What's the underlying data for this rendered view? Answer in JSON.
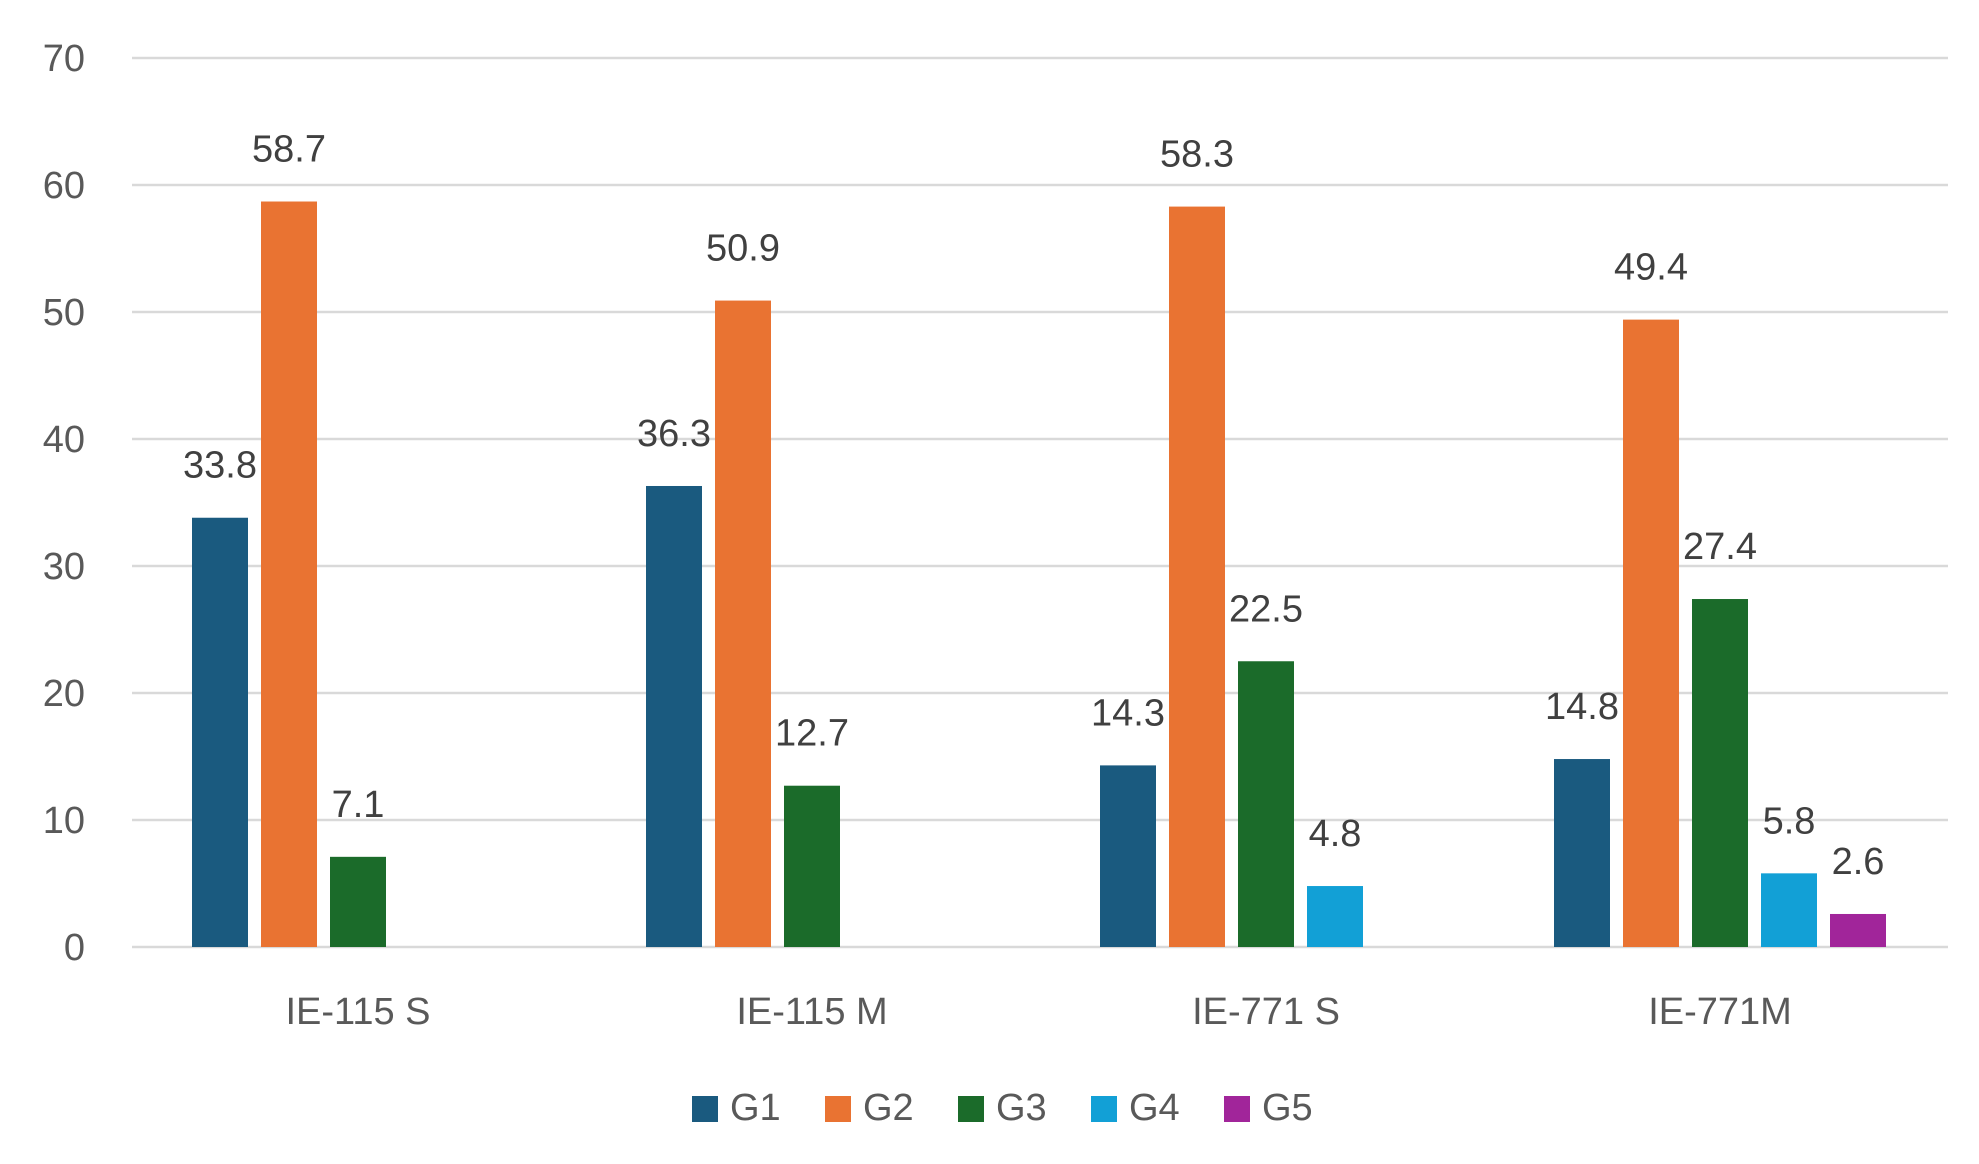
{
  "chart_data": {
    "type": "bar",
    "title": "",
    "xlabel": "",
    "ylabel": "",
    "ylim": [
      0,
      70
    ],
    "yticks": [
      0,
      10,
      20,
      30,
      40,
      50,
      60,
      70
    ],
    "grid": true,
    "legend_position": "bottom",
    "categories": [
      "IE-115 S",
      "IE-115 M",
      "IE-771 S",
      "IE-771M"
    ],
    "series": [
      {
        "name": "G1",
        "color": "#1a5a7f",
        "values": [
          33.8,
          36.3,
          14.3,
          14.8
        ]
      },
      {
        "name": "G2",
        "color": "#e97332",
        "values": [
          58.7,
          50.9,
          58.3,
          49.4
        ]
      },
      {
        "name": "G3",
        "color": "#1b6b2a",
        "values": [
          7.1,
          12.7,
          22.5,
          27.4
        ]
      },
      {
        "name": "G4",
        "color": "#12a0d6",
        "values": [
          null,
          null,
          4.8,
          5.8
        ]
      },
      {
        "name": "G5",
        "color": "#a1259a",
        "values": [
          null,
          null,
          null,
          2.6
        ]
      }
    ]
  }
}
